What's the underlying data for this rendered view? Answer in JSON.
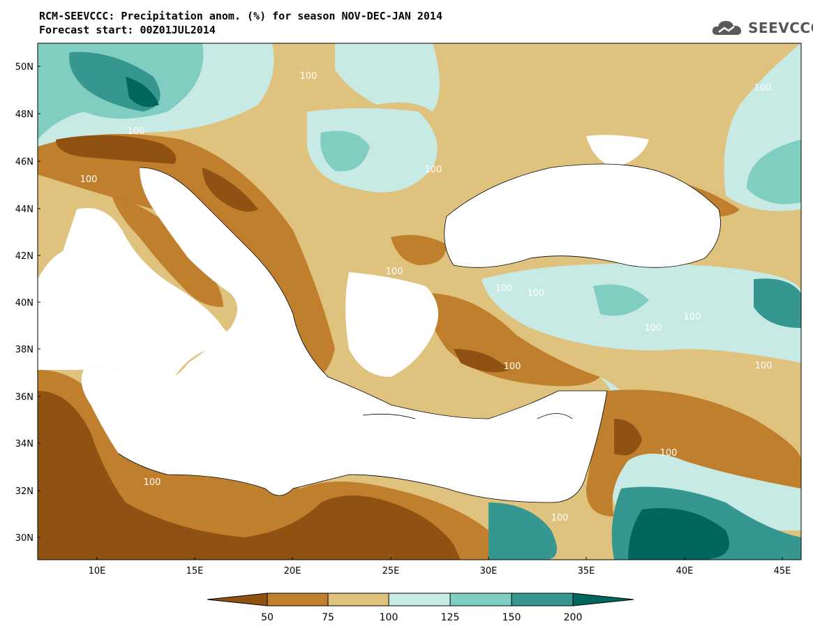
{
  "title_line1": "RCM-SEEVCCC: Precipitation anom. (%) for season NOV-DEC-JAN 2014",
  "title_line2": "Forecast start: 00Z01JUL2014",
  "logo_text": "SEEVCCC",
  "logo_icon": "cloud-icon",
  "map": {
    "lon_range": [
      7,
      46
    ],
    "lat_range": [
      29,
      51
    ],
    "lat_ticks": [
      "50N",
      "48N",
      "46N",
      "44N",
      "42N",
      "40N",
      "38N",
      "36N",
      "34N",
      "32N",
      "30N"
    ],
    "lon_ticks": [
      "10E",
      "15E",
      "20E",
      "25E",
      "30E",
      "35E",
      "40E",
      "45E"
    ],
    "contour_labels": [
      "100",
      "100",
      "100",
      "100",
      "100",
      "100",
      "100",
      "100",
      "100",
      "100",
      "100",
      "100",
      "100",
      "100",
      "100",
      "100",
      "100"
    ]
  },
  "colorbar": {
    "labels": [
      "50",
      "75",
      "100",
      "125",
      "150",
      "200"
    ],
    "colors": [
      "#8f5212",
      "#bf7f2c",
      "#dfc27d",
      "#c7eae5",
      "#80cdc1",
      "#35978f",
      "#01665e"
    ]
  }
}
